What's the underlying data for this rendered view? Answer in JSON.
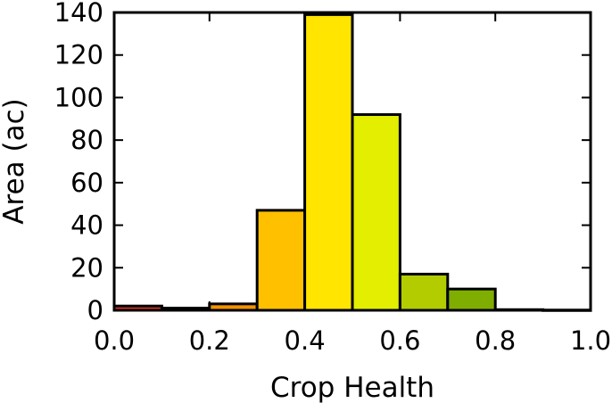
{
  "chart_data": {
    "type": "bar",
    "title": "",
    "xlabel": "Crop Health",
    "ylabel": "Area (ac)",
    "xlim": [
      0.0,
      1.0
    ],
    "ylim": [
      0,
      140
    ],
    "x_ticks": [
      "0.0",
      "0.2",
      "0.4",
      "0.6",
      "0.8",
      "1.0"
    ],
    "y_ticks": [
      "0",
      "20",
      "40",
      "60",
      "80",
      "100",
      "120",
      "140"
    ],
    "grid": false,
    "legend": "none",
    "bins": [
      {
        "start": 0.0,
        "end": 0.1,
        "value": 2,
        "color": "#d7301f"
      },
      {
        "start": 0.1,
        "end": 0.2,
        "value": 1,
        "color": "#e34a1c"
      },
      {
        "start": 0.2,
        "end": 0.3,
        "value": 3,
        "color": "#f39200"
      },
      {
        "start": 0.3,
        "end": 0.4,
        "value": 47,
        "color": "#ffc000"
      },
      {
        "start": 0.4,
        "end": 0.5,
        "value": 139,
        "color": "#ffe500"
      },
      {
        "start": 0.5,
        "end": 0.6,
        "value": 92,
        "color": "#e3ee00"
      },
      {
        "start": 0.6,
        "end": 0.7,
        "value": 17,
        "color": "#b2cc00"
      },
      {
        "start": 0.7,
        "end": 0.8,
        "value": 10,
        "color": "#7fae00"
      },
      {
        "start": 0.8,
        "end": 0.9,
        "value": 0.3,
        "color": "#4a8f00"
      },
      {
        "start": 0.9,
        "end": 1.0,
        "value": 0.1,
        "color": "#2f7a00"
      }
    ]
  }
}
